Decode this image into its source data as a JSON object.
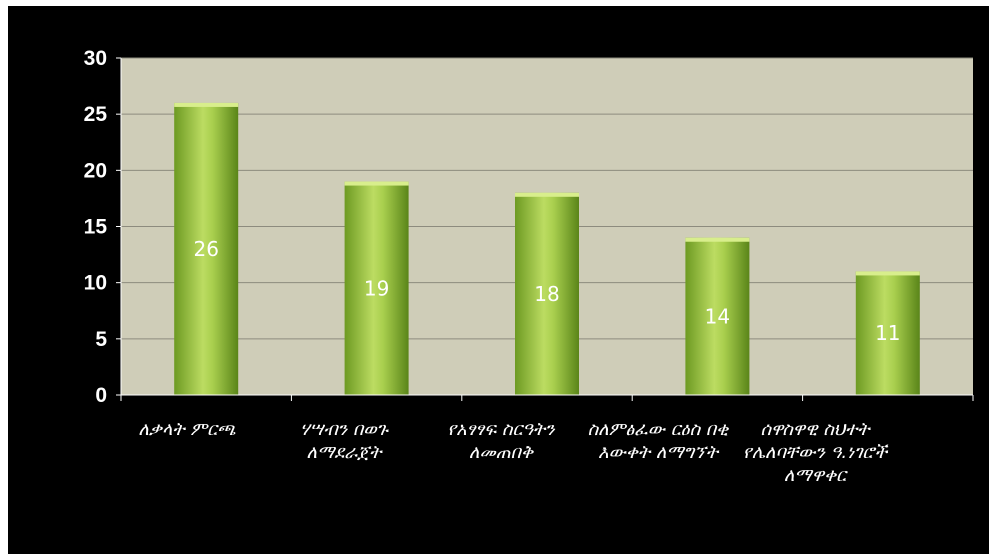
{
  "chart_data": {
    "type": "bar",
    "categories": [
      "ለቃላት ምርጫ",
      "ሃሣብን በወጉ ለማደራጀት",
      "የአፃፃፍ ስርዓትን ለመጠበቅ",
      "ስለምፅፈው ርዕስ በቂ እውቀት ለማግኘት",
      "ሰዋስዋዊ ስህተት የሌለባቸውን ዓ.ነገሮች ለማዋቀር"
    ],
    "values": [
      26,
      19,
      18,
      14,
      11
    ],
    "data_labels": [
      "26",
      "19",
      "18",
      "14",
      "11"
    ],
    "y_ticks": [
      "0",
      "5",
      "10",
      "15",
      "20",
      "25",
      "30"
    ],
    "ylim": [
      0,
      30
    ],
    "grid": true,
    "legend": "none",
    "colors": {
      "background": "#000000",
      "plot_area": "#cfcdb8",
      "bar_light": "#c2e06a",
      "bar_dark": "#5f8a1e",
      "text": "#ffffff",
      "grid": "#8d8b7e"
    }
  }
}
